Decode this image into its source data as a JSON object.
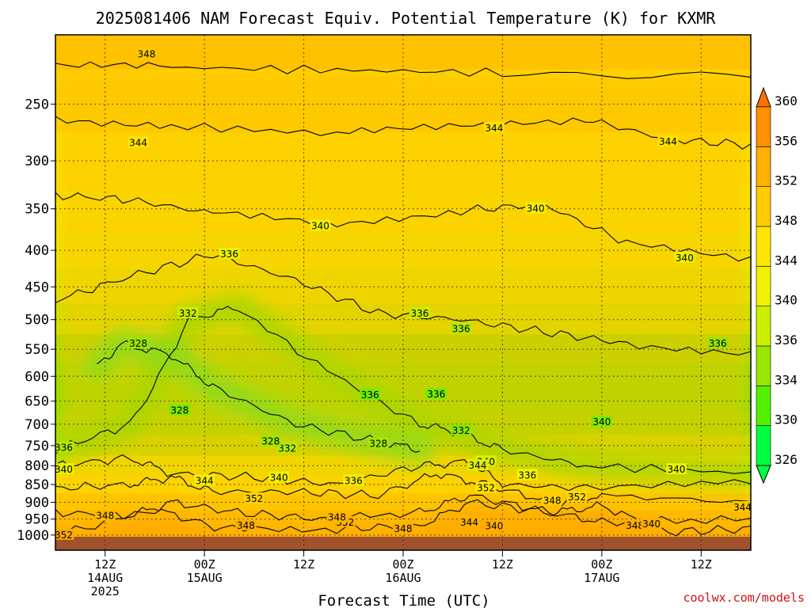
{
  "chart_data": {
    "type": "heatmap",
    "title": "2025081406 NAM Forecast Equiv. Potential Temperature (K) for KXMR",
    "xlabel": "Forecast Time (UTC)",
    "ylabel": "",
    "credit": "coolwx.com/models",
    "y_scale": "log",
    "y_range_hPa": [
      200,
      1050
    ],
    "y_ticks": [
      {
        "value": 250,
        "label": "250"
      },
      {
        "value": 300,
        "label": "300"
      },
      {
        "value": 350,
        "label": "350"
      },
      {
        "value": 400,
        "label": "400"
      },
      {
        "value": 450,
        "label": "450"
      },
      {
        "value": 500,
        "label": "500"
      },
      {
        "value": 550,
        "label": "550"
      },
      {
        "value": 600,
        "label": "600"
      },
      {
        "value": 650,
        "label": "650"
      },
      {
        "value": 700,
        "label": "700"
      },
      {
        "value": 750,
        "label": "750"
      },
      {
        "value": 800,
        "label": "800"
      },
      {
        "value": 850,
        "label": "850"
      },
      {
        "value": 900,
        "label": "900"
      },
      {
        "value": 950,
        "label": "950"
      },
      {
        "value": 1000,
        "label": "1000"
      }
    ],
    "x_range_hours": [
      6,
      84
    ],
    "x_ticks": [
      {
        "hours": 12,
        "lines": [
          "12Z",
          "14AUG",
          "2025"
        ]
      },
      {
        "hours": 24,
        "lines": [
          "00Z",
          "15AUG"
        ]
      },
      {
        "hours": 36,
        "lines": [
          "12Z"
        ]
      },
      {
        "hours": 48,
        "lines": [
          "00Z",
          "16AUG"
        ]
      },
      {
        "hours": 60,
        "lines": [
          "12Z"
        ]
      },
      {
        "hours": 72,
        "lines": [
          "00Z",
          "17AUG"
        ]
      },
      {
        "hours": 84,
        "lines": [
          "12Z"
        ]
      }
    ],
    "x_end_hours": 90,
    "grid": true,
    "colorbar": {
      "position": "right",
      "ticks": [
        "326",
        "330",
        "334",
        "336",
        "340",
        "344",
        "348",
        "352",
        "356",
        "360"
      ],
      "colors": [
        "#00ff40",
        "#55f000",
        "#9ae600",
        "#ccf000",
        "#f2f200",
        "#ffe600",
        "#ffcc00",
        "#ffb000",
        "#ff9000",
        "#ff7000"
      ]
    },
    "field_levels": [
      {
        "p": 200,
        "theta": 349.5
      },
      {
        "p": 250,
        "theta": 346.5
      },
      {
        "p": 300,
        "theta": 343.5
      },
      {
        "p": 350,
        "theta": 341.5
      },
      {
        "p": 400,
        "theta": 339.5
      },
      {
        "p": 450,
        "theta": 337.5
      },
      {
        "p": 500,
        "theta": 335.5
      },
      {
        "p": 550,
        "theta": 333.5
      },
      {
        "p": 600,
        "theta": 332.0
      },
      {
        "p": 650,
        "theta": 331.5
      },
      {
        "p": 700,
        "theta": 332.5
      },
      {
        "p": 750,
        "theta": 334.5
      },
      {
        "p": 800,
        "theta": 338.0
      },
      {
        "p": 850,
        "theta": 342.0
      },
      {
        "p": 900,
        "theta": 348.0
      },
      {
        "p": 950,
        "theta": 351.5
      },
      {
        "p": 1000,
        "theta": 353.0
      }
    ],
    "contour_lines": [
      {
        "level": 348,
        "points": [
          [
            6,
            220
          ],
          [
            20,
            222
          ],
          [
            40,
            224
          ],
          [
            60,
            226
          ],
          [
            90,
            228
          ]
        ]
      },
      {
        "level": 344,
        "points": [
          [
            6,
            262
          ],
          [
            20,
            268
          ],
          [
            40,
            275
          ],
          [
            55,
            268
          ],
          [
            70,
            262
          ],
          [
            80,
            280
          ],
          [
            90,
            285
          ]
        ]
      },
      {
        "level": 340,
        "points": [
          [
            6,
            335
          ],
          [
            15,
            340
          ],
          [
            25,
            355
          ],
          [
            40,
            368
          ],
          [
            55,
            352
          ],
          [
            65,
            345
          ],
          [
            75,
            390
          ],
          [
            90,
            410
          ]
        ]
      },
      {
        "level": 336,
        "points": [
          [
            6,
            470
          ],
          [
            15,
            435
          ],
          [
            25,
            405
          ],
          [
            35,
            440
          ],
          [
            45,
            490
          ],
          [
            55,
            500
          ],
          [
            65,
            520
          ],
          [
            75,
            540
          ],
          [
            90,
            560
          ]
        ]
      },
      {
        "level": 332,
        "points": [
          [
            6,
            760
          ],
          [
            15,
            700
          ],
          [
            22,
            500
          ],
          [
            28,
            480
          ],
          [
            40,
            600
          ],
          [
            50,
            700
          ],
          [
            55,
            720
          ],
          [
            60,
            760
          ],
          [
            70,
            800
          ],
          [
            90,
            820
          ]
        ]
      },
      {
        "level": 328,
        "points": [
          [
            11,
            580
          ],
          [
            14,
            540
          ],
          [
            20,
            560
          ],
          [
            25,
            620
          ],
          [
            35,
            700
          ],
          [
            45,
            740
          ],
          [
            50,
            760
          ]
        ]
      },
      {
        "level": 340,
        "points": [
          [
            6,
            800
          ],
          [
            15,
            780
          ],
          [
            20,
            820
          ],
          [
            30,
            830
          ],
          [
            40,
            850
          ],
          [
            50,
            800
          ],
          [
            56,
            790
          ],
          [
            60,
            850
          ],
          [
            70,
            860
          ],
          [
            90,
            840
          ]
        ]
      },
      {
        "level": 344,
        "points": [
          [
            6,
            860
          ],
          [
            15,
            850
          ],
          [
            20,
            830
          ],
          [
            25,
            870
          ],
          [
            35,
            870
          ],
          [
            45,
            880
          ],
          [
            52,
            820
          ],
          [
            58,
            850
          ],
          [
            66,
            900
          ],
          [
            72,
            880
          ],
          [
            90,
            900
          ]
        ]
      },
      {
        "level": 348,
        "points": [
          [
            6,
            930
          ],
          [
            15,
            940
          ],
          [
            20,
            900
          ],
          [
            28,
            930
          ],
          [
            38,
            950
          ],
          [
            50,
            930
          ],
          [
            56,
            880
          ],
          [
            64,
            920
          ],
          [
            72,
            960
          ],
          [
            90,
            950
          ]
        ]
      },
      {
        "level": 352,
        "points": [
          [
            6,
            1000
          ],
          [
            18,
            920
          ],
          [
            26,
            980
          ],
          [
            40,
            980
          ],
          [
            50,
            970
          ],
          [
            56,
            900
          ],
          [
            66,
            930
          ],
          [
            72,
            910
          ],
          [
            80,
            990
          ],
          [
            90,
            980
          ]
        ]
      }
    ],
    "contour_labels": [
      {
        "text": "348",
        "hours": 17,
        "p": 213
      },
      {
        "text": "344",
        "hours": 16,
        "p": 283
      },
      {
        "text": "344",
        "hours": 59,
        "p": 270
      },
      {
        "text": "344",
        "hours": 80,
        "p": 282
      },
      {
        "text": "340",
        "hours": 38,
        "p": 370
      },
      {
        "text": "340",
        "hours": 64,
        "p": 350
      },
      {
        "text": "340",
        "hours": 82,
        "p": 410
      },
      {
        "text": "336",
        "hours": 27,
        "p": 405
      },
      {
        "text": "336",
        "hours": 50,
        "p": 490
      },
      {
        "text": "336",
        "hours": 55,
        "p": 515
      },
      {
        "text": "336",
        "hours": 86,
        "p": 540
      },
      {
        "text": "336",
        "hours": 7,
        "p": 755
      },
      {
        "text": "336",
        "hours": 44,
        "p": 637
      },
      {
        "text": "336",
        "hours": 52,
        "p": 636
      },
      {
        "text": "336",
        "hours": 42,
        "p": 840
      },
      {
        "text": "336",
        "hours": 63,
        "p": 825
      },
      {
        "text": "332",
        "hours": 22,
        "p": 490
      },
      {
        "text": "332",
        "hours": 55,
        "p": 715
      },
      {
        "text": "332",
        "hours": 34,
        "p": 757
      },
      {
        "text": "328",
        "hours": 16,
        "p": 540
      },
      {
        "text": "328",
        "hours": 21,
        "p": 670
      },
      {
        "text": "328",
        "hours": 32,
        "p": 740
      },
      {
        "text": "328",
        "hours": 45,
        "p": 745
      },
      {
        "text": "340",
        "hours": 7,
        "p": 810
      },
      {
        "text": "340",
        "hours": 33,
        "p": 832
      },
      {
        "text": "340",
        "hours": 58,
        "p": 790
      },
      {
        "text": "344",
        "hours": 57,
        "p": 800
      },
      {
        "text": "340",
        "hours": 81,
        "p": 810
      },
      {
        "text": "340",
        "hours": 72,
        "p": 695
      },
      {
        "text": "344",
        "hours": 24,
        "p": 840
      },
      {
        "text": "352",
        "hours": 30,
        "p": 890
      },
      {
        "text": "352",
        "hours": 58,
        "p": 860
      },
      {
        "text": "352",
        "hours": 69,
        "p": 885
      },
      {
        "text": "352",
        "hours": 7,
        "p": 1000
      },
      {
        "text": "352",
        "hours": 41,
        "p": 960
      },
      {
        "text": "348",
        "hours": 12,
        "p": 940
      },
      {
        "text": "348",
        "hours": 29,
        "p": 970
      },
      {
        "text": "348",
        "hours": 40,
        "p": 945
      },
      {
        "text": "348",
        "hours": 66,
        "p": 895
      },
      {
        "text": "348",
        "hours": 48,
        "p": 980
      },
      {
        "text": "344",
        "hours": 56,
        "p": 960
      },
      {
        "text": "340",
        "hours": 59,
        "p": 972
      },
      {
        "text": "348",
        "hours": 76,
        "p": 970
      },
      {
        "text": "340",
        "hours": 78,
        "p": 965
      },
      {
        "text": "344",
        "hours": 89,
        "p": 915
      }
    ]
  }
}
